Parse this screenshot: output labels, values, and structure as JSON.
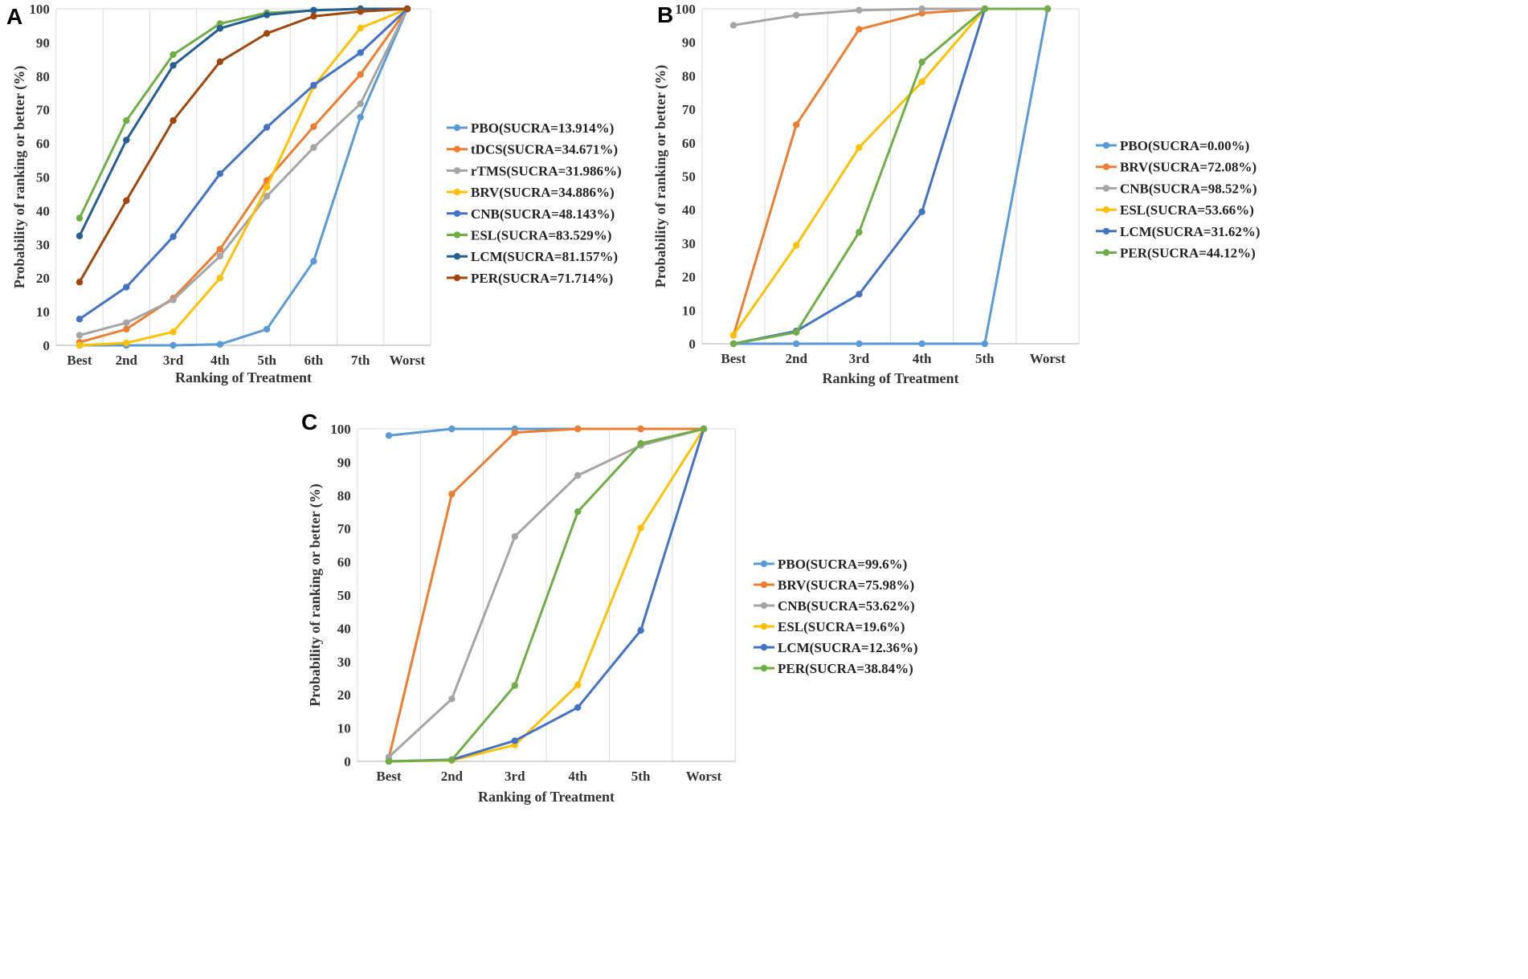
{
  "chart_data": [
    {
      "type": "line",
      "panel_label": "A",
      "xlabel": "Ranking of Treatment",
      "ylabel": "Probability of ranking or better (%)",
      "categories": [
        "Best",
        "2nd",
        "3rd",
        "4th",
        "5th",
        "6th",
        "7th",
        "Worst"
      ],
      "ylim": [
        0,
        100
      ],
      "yticks": [
        "0",
        "10",
        "20",
        "30",
        "40",
        "50",
        "60",
        "70",
        "80",
        "90",
        "100"
      ],
      "grid": true,
      "legend_position": "right",
      "series": [
        {
          "name": "PBO(SUCRA=13.914%)",
          "color": "#5B9BD5",
          "values": [
            0,
            0,
            0,
            0.3,
            4.8,
            25,
            67.8,
            100
          ]
        },
        {
          "name": "tDCS(SUCRA=34.671%)",
          "color": "#ED7D31",
          "values": [
            0.9,
            4.8,
            14,
            28.6,
            49,
            65,
            80.5,
            100
          ]
        },
        {
          "name": "rTMS(SUCRA=31.986%)",
          "color": "#A5A5A5",
          "values": [
            3,
            6.7,
            13.5,
            26.5,
            44.3,
            58.8,
            71.8,
            100
          ]
        },
        {
          "name": "BRV(SUCRA=34.886%)",
          "color": "#FFC000",
          "values": [
            0,
            0.7,
            4,
            20,
            47,
            77,
            94.3,
            100
          ]
        },
        {
          "name": "CNB(SUCRA=48.143%)",
          "color": "#4472C4",
          "values": [
            7.8,
            17.3,
            32.3,
            51,
            64.8,
            77.3,
            87,
            100
          ]
        },
        {
          "name": "ESL(SUCRA=83.529%)",
          "color": "#70AD47",
          "values": [
            37.8,
            66.8,
            86.4,
            95.6,
            98.8,
            99.5,
            100,
            100
          ]
        },
        {
          "name": "LCM(SUCRA=81.157%)",
          "color": "#255E91",
          "values": [
            32.5,
            61,
            83.2,
            94.2,
            98.2,
            99.6,
            100,
            100
          ]
        },
        {
          "name": "PER(SUCRA=71.714%)",
          "color": "#9E480E",
          "values": [
            18.8,
            43,
            66.8,
            84.3,
            92.7,
            97.8,
            99.2,
            100
          ]
        }
      ]
    },
    {
      "type": "line",
      "panel_label": "B",
      "xlabel": "Ranking of Treatment",
      "ylabel": "Probability of ranking or better (%)",
      "categories": [
        "Best",
        "2nd",
        "3rd",
        "4th",
        "5th",
        "Worst"
      ],
      "ylim": [
        0,
        100
      ],
      "yticks": [
        "0",
        "10",
        "20",
        "30",
        "40",
        "50",
        "60",
        "70",
        "80",
        "90",
        "100"
      ],
      "grid": true,
      "legend_position": "right",
      "series": [
        {
          "name": "PBO(SUCRA=0.00%)",
          "color": "#5B9BD5",
          "values": [
            0,
            0,
            0,
            0,
            0,
            100
          ]
        },
        {
          "name": "BRV(SUCRA=72.08%)",
          "color": "#ED7D31",
          "values": [
            2.5,
            65.4,
            93.9,
            98.7,
            100,
            100
          ]
        },
        {
          "name": "CNB(SUCRA=98.52%)",
          "color": "#A5A5A5",
          "values": [
            95.1,
            98.1,
            99.6,
            100,
            100,
            100
          ]
        },
        {
          "name": "ESL(SUCRA=53.66%)",
          "color": "#FFC000",
          "values": [
            2.6,
            29.4,
            58.6,
            78.2,
            100,
            100
          ]
        },
        {
          "name": "LCM(SUCRA=31.62%)",
          "color": "#4472C4",
          "values": [
            0,
            3.8,
            14.8,
            39.4,
            100,
            100
          ]
        },
        {
          "name": "PER(SUCRA=44.12%)",
          "color": "#70AD47",
          "values": [
            0,
            3.4,
            33.3,
            84.1,
            100,
            100
          ]
        }
      ]
    },
    {
      "type": "line",
      "panel_label": "C",
      "xlabel": "Ranking of Treatment",
      "ylabel": "Probability of ranking or better (%)",
      "categories": [
        "Best",
        "2nd",
        "3rd",
        "4th",
        "5th",
        "Worst"
      ],
      "ylim": [
        0,
        100
      ],
      "yticks": [
        "0",
        "10",
        "20",
        "30",
        "40",
        "50",
        "60",
        "70",
        "80",
        "90",
        "100"
      ],
      "grid": true,
      "legend_position": "right",
      "series": [
        {
          "name": "PBO(SUCRA=99.6%)",
          "color": "#5B9BD5",
          "values": [
            98,
            100,
            100,
            100,
            100,
            100
          ]
        },
        {
          "name": "BRV(SUCRA=75.98%)",
          "color": "#ED7D31",
          "values": [
            1,
            80.4,
            98.9,
            100,
            100,
            100
          ]
        },
        {
          "name": "CNB(SUCRA=53.62%)",
          "color": "#A5A5A5",
          "values": [
            1.3,
            18.8,
            67.6,
            86,
            95,
            100
          ]
        },
        {
          "name": "ESL(SUCRA=19.6%)",
          "color": "#FFC000",
          "values": [
            0,
            0.3,
            4.9,
            23,
            70.2,
            100
          ]
        },
        {
          "name": "LCM(SUCRA=12.36%)",
          "color": "#4472C4",
          "values": [
            0,
            0.5,
            6.2,
            16.2,
            39.4,
            100
          ]
        },
        {
          "name": "PER(SUCRA=38.84%)",
          "color": "#70AD47",
          "values": [
            0,
            0.4,
            22.8,
            75.1,
            95.6,
            100
          ]
        }
      ]
    }
  ]
}
